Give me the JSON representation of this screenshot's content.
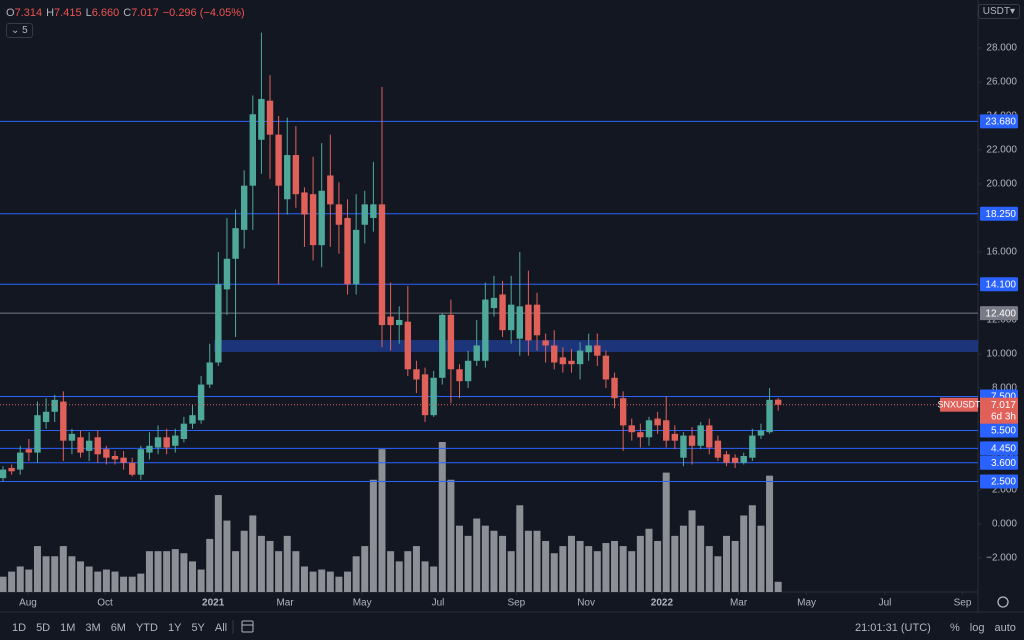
{
  "header": {
    "ohlc": [
      {
        "label": "O",
        "value": "7.314"
      },
      {
        "label": "H",
        "value": "7.415"
      },
      {
        "label": "L",
        "value": "6.660"
      },
      {
        "label": "C",
        "value": "7.017"
      }
    ],
    "change": "−0.296 (−4.05%)",
    "indicator_count": "5",
    "currency": "USDT"
  },
  "chart_data": {
    "type": "candlestick",
    "symbol": "SNXUSDT",
    "open": [
      2.7,
      3.3,
      3.2,
      4.4,
      4.2,
      6.0,
      6.6,
      7.2,
      4.9,
      5.1,
      4.3,
      5.1,
      4.4,
      4.0,
      3.9,
      3.6,
      2.9,
      4.2,
      4.5,
      5.1,
      4.6,
      5.0,
      5.9,
      6.1,
      8.2,
      9.5,
      13.8,
      15.6,
      17.3,
      19.9,
      22.6,
      24.9,
      22.9,
      19.1,
      21.7,
      19.5,
      19.4,
      16.4,
      20.5,
      18.8,
      18.0,
      14.1,
      17.6,
      18.0,
      18.8,
      12.2,
      11.7,
      11.9,
      9.1,
      8.8,
      6.4,
      8.6,
      12.3,
      9.1,
      8.4,
      9.6,
      9.6,
      12.7,
      13.5,
      11.4,
      10.9,
      12.9,
      12.9,
      10.8,
      10.5,
      9.8,
      9.6,
      9.4,
      10.1,
      10.5,
      9.9,
      8.6,
      7.4,
      5.8,
      5.4,
      5.1,
      6.2,
      6.1,
      5.3,
      3.9,
      5.2,
      4.6,
      5.8,
      4.9,
      4.1,
      3.9,
      3.6,
      3.9,
      5.2,
      5.4,
      7.314
    ],
    "high": [
      3.4,
      3.5,
      4.6,
      5.0,
      7.2,
      7.4,
      7.6,
      7.8,
      5.6,
      5.5,
      5.4,
      5.5,
      4.6,
      4.3,
      4.3,
      3.9,
      4.6,
      5.4,
      5.8,
      5.6,
      5.6,
      6.3,
      7.0,
      8.7,
      10.6,
      16.0,
      18.0,
      18.5,
      20.8,
      25.2,
      28.9,
      26.4,
      24.0,
      23.9,
      23.4,
      19.8,
      21.6,
      22.4,
      22.9,
      20.1,
      19.1,
      19.4,
      19.6,
      21.3,
      25.7,
      14.2,
      12.8,
      14.0,
      9.6,
      9.2,
      9.0,
      12.4,
      13.2,
      9.4,
      10.2,
      12.0,
      14.2,
      14.6,
      14.3,
      14.6,
      16.0,
      14.9,
      13.6,
      11.2,
      11.4,
      10.4,
      10.3,
      10.7,
      11.2,
      11.2,
      10.2,
      8.9,
      7.8,
      6.2,
      5.9,
      6.3,
      6.6,
      7.5,
      5.8,
      5.4,
      5.7,
      6.0,
      6.2,
      5.2,
      4.3,
      4.1,
      4.2,
      5.6,
      5.9,
      8.0,
      7.415
    ],
    "low": [
      2.5,
      2.9,
      2.9,
      3.7,
      3.6,
      5.6,
      6.0,
      3.7,
      4.1,
      3.9,
      3.7,
      3.6,
      3.5,
      3.5,
      3.2,
      2.8,
      2.6,
      3.8,
      4.1,
      4.1,
      4.2,
      4.8,
      5.6,
      5.9,
      8.0,
      9.3,
      12.3,
      11.0,
      16.2,
      17.3,
      20.6,
      20.3,
      14.1,
      18.2,
      18.6,
      16.3,
      15.5,
      15.1,
      16.3,
      15.9,
      13.5,
      13.5,
      16.5,
      17.2,
      10.4,
      10.2,
      10.6,
      8.7,
      7.7,
      6.0,
      6.3,
      8.2,
      7.1,
      7.4,
      8.0,
      9.3,
      9.2,
      12.2,
      11.0,
      10.6,
      9.9,
      9.9,
      10.2,
      9.5,
      9.1,
      8.9,
      8.9,
      8.5,
      9.6,
      9.3,
      8.0,
      6.8,
      4.3,
      4.9,
      4.5,
      4.6,
      5.3,
      4.5,
      4.4,
      3.4,
      3.5,
      4.4,
      4.1,
      3.7,
      3.4,
      3.3,
      3.5,
      3.7,
      5.0,
      5.3,
      6.66
    ],
    "close": [
      3.2,
      3.1,
      4.2,
      4.2,
      6.4,
      6.6,
      7.3,
      4.9,
      5.3,
      4.2,
      4.9,
      4.1,
      3.9,
      3.8,
      3.6,
      2.9,
      4.4,
      4.6,
      5.1,
      4.5,
      5.2,
      5.9,
      6.4,
      8.2,
      9.5,
      14.1,
      15.6,
      17.4,
      19.9,
      24.1,
      25.0,
      22.9,
      19.9,
      21.7,
      19.4,
      18.2,
      16.4,
      19.6,
      18.8,
      17.6,
      14.1,
      17.3,
      18.8,
      18.8,
      11.7,
      11.7,
      12.0,
      9.1,
      8.5,
      6.4,
      8.6,
      12.3,
      9.1,
      8.4,
      9.6,
      10.5,
      13.2,
      13.3,
      11.4,
      12.9,
      12.8,
      10.8,
      11.1,
      10.5,
      9.5,
      9.4,
      9.4,
      10.2,
      10.5,
      9.9,
      8.5,
      7.4,
      5.8,
      5.4,
      5.1,
      6.1,
      5.8,
      4.9,
      4.9,
      5.2,
      4.6,
      5.8,
      4.5,
      3.9,
      3.6,
      3.6,
      4.0,
      5.2,
      5.5,
      7.3,
      7.017
    ],
    "volume": [
      15,
      20,
      25,
      22,
      45,
      35,
      35,
      45,
      35,
      30,
      25,
      20,
      22,
      20,
      15,
      15,
      18,
      40,
      40,
      40,
      42,
      38,
      30,
      22,
      52,
      95,
      70,
      40,
      60,
      75,
      55,
      50,
      40,
      55,
      40,
      25,
      20,
      22,
      20,
      15,
      20,
      35,
      45,
      110,
      140,
      40,
      30,
      40,
      45,
      30,
      25,
      147,
      110,
      65,
      55,
      72,
      65,
      60,
      55,
      40,
      85,
      60,
      60,
      50,
      38,
      45,
      55,
      50,
      45,
      40,
      48,
      50,
      45,
      40,
      55,
      62,
      50,
      117,
      55,
      65,
      80,
      65,
      45,
      35,
      55,
      50,
      75,
      85,
      65,
      114,
      10
    ],
    "up_color": "#4ea99a",
    "down_color": "#e0605a",
    "volume_color": "#8d8f96",
    "ylim": [
      -4,
      30.82
    ],
    "yticks": [
      {
        "value": -2,
        "label": "−2.000"
      },
      {
        "value": 0,
        "label": "0.000"
      },
      {
        "value": 2,
        "label": "2.000"
      },
      {
        "value": 4,
        "label": "4.000"
      },
      {
        "value": 6,
        "label": "6.000"
      },
      {
        "value": 8,
        "label": "8.000"
      },
      {
        "value": 10,
        "label": "10.000"
      },
      {
        "value": 12,
        "label": "12.000"
      },
      {
        "value": 14,
        "label": "14.000"
      },
      {
        "value": 16,
        "label": "16.000"
      },
      {
        "value": 18,
        "label": "18.000"
      },
      {
        "value": 20,
        "label": "20.000"
      },
      {
        "value": 22,
        "label": "22.000"
      },
      {
        "value": 24,
        "label": "24.000"
      },
      {
        "value": 26,
        "label": "26.000"
      },
      {
        "value": 28,
        "label": "28.000"
      }
    ],
    "xlim": [
      -0.35,
      113.2
    ],
    "xticks": [
      {
        "value": 2.9,
        "label": "Aug"
      },
      {
        "value": 11.85,
        "label": "Oct"
      },
      {
        "value": 24.4,
        "label": "2021"
      },
      {
        "value": 32.75,
        "label": "Mar"
      },
      {
        "value": 41.7,
        "label": "May"
      },
      {
        "value": 50.5,
        "label": "Jul"
      },
      {
        "value": 59.6,
        "label": "Sep"
      },
      {
        "value": 67.7,
        "label": "Nov"
      },
      {
        "value": 76.5,
        "label": "2022"
      },
      {
        "value": 85.4,
        "label": "Mar"
      },
      {
        "value": 93.3,
        "label": "May"
      },
      {
        "value": 102.4,
        "label": "Jul"
      },
      {
        "value": 111.4,
        "label": "Sep"
      }
    ],
    "levels": [
      {
        "value": 23.68,
        "label": "23.680",
        "color": "#2962ff"
      },
      {
        "value": 18.25,
        "label": "18.250",
        "color": "#2962ff"
      },
      {
        "value": 14.1,
        "label": "14.100",
        "color": "#2962ff"
      },
      {
        "value": 12.4,
        "label": "12.400",
        "color": "#787b86"
      },
      {
        "value": 7.5,
        "label": "7.500",
        "color": "#2962ff"
      },
      {
        "value": 5.5,
        "label": "5.500",
        "color": "#2962ff"
      },
      {
        "value": 4.45,
        "label": "4.450",
        "color": "#2962ff"
      },
      {
        "value": 3.6,
        "label": "3.600",
        "color": "#2962ff"
      },
      {
        "value": 2.5,
        "label": "2.500",
        "color": "#2962ff"
      }
    ],
    "zone": {
      "low": 10.12,
      "high": 10.82,
      "color": "#1e3a8a"
    },
    "last_price": {
      "value": 7.017,
      "label": "7.017",
      "countdown": "6d 3h",
      "color": "#e0605a"
    }
  },
  "toolbar": {
    "ranges": [
      "1D",
      "5D",
      "1M",
      "3M",
      "6M",
      "YTD",
      "1Y",
      "5Y",
      "All"
    ],
    "time": "21:01:31 (UTC)",
    "options": [
      "%",
      "log",
      "auto"
    ]
  }
}
